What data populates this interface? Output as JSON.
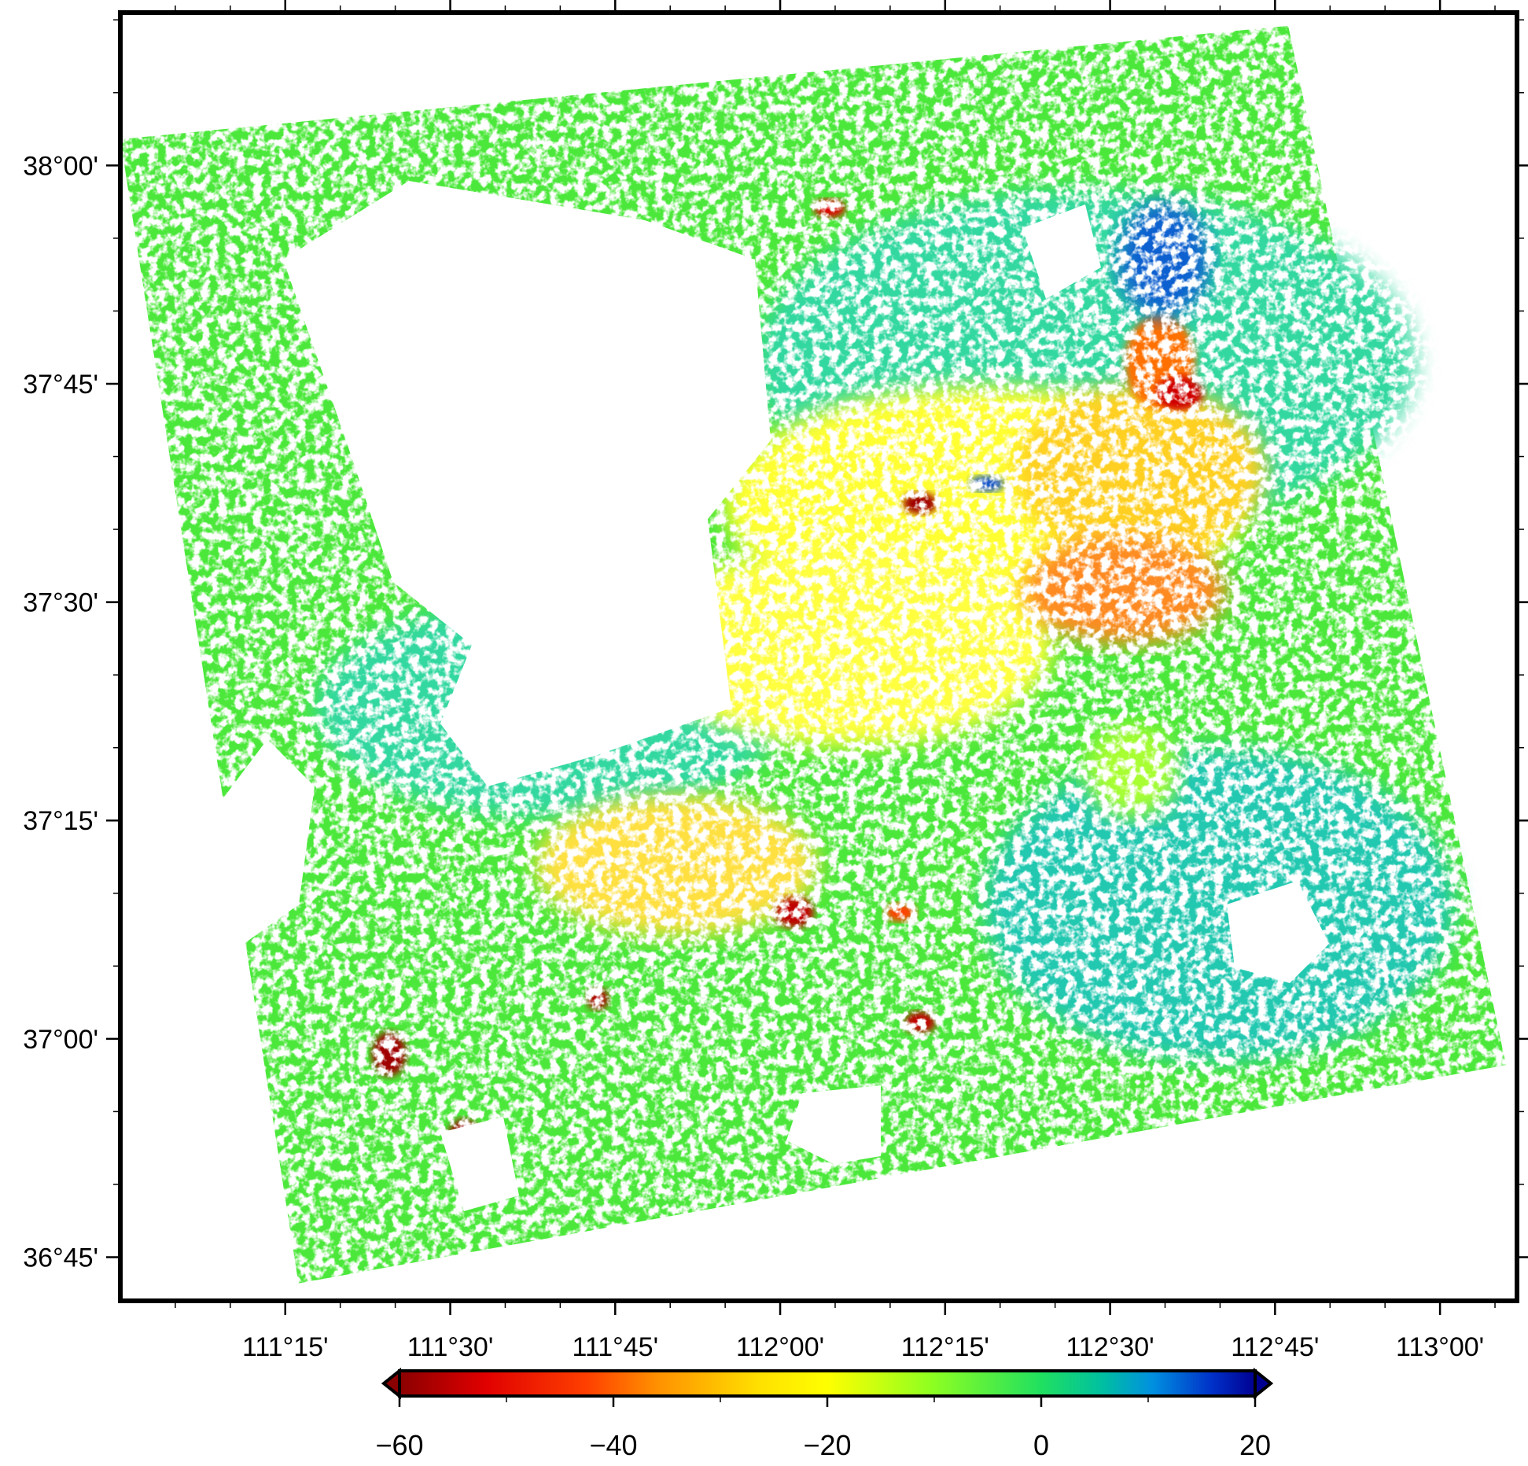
{
  "map": {
    "lon_min": 111.0,
    "lon_max": 113.11667,
    "lat_min": 36.7,
    "lat_max": 38.175,
    "lon_ticks": [
      {
        "value": 111.25,
        "label": "111°15'"
      },
      {
        "value": 111.5,
        "label": "111°30'"
      },
      {
        "value": 111.75,
        "label": "111°45'"
      },
      {
        "value": 112.0,
        "label": "112°00'"
      },
      {
        "value": 112.25,
        "label": "112°15'"
      },
      {
        "value": 112.5,
        "label": "112°30'"
      },
      {
        "value": 112.75,
        "label": "112°45'"
      },
      {
        "value": 113.0,
        "label": "113°00'"
      }
    ],
    "lat_ticks": [
      {
        "value": 36.75,
        "label": "36°45'"
      },
      {
        "value": 37.0,
        "label": "37°00'"
      },
      {
        "value": 37.25,
        "label": "37°15'"
      },
      {
        "value": 37.5,
        "label": "37°30'"
      },
      {
        "value": 37.75,
        "label": "37°45'"
      },
      {
        "value": 38.0,
        "label": "38°00'"
      }
    ],
    "scene_corners": [
      {
        "lon": 111.0,
        "lat": 38.03
      },
      {
        "lon": 112.77,
        "lat": 38.16
      },
      {
        "lon": 113.1,
        "lat": 36.97
      },
      {
        "lon": 111.27,
        "lat": 36.72
      }
    ]
  },
  "colorbar": {
    "min": -60,
    "max": 20,
    "ticks": [
      {
        "value": -60,
        "label": "−60"
      },
      {
        "value": -40,
        "label": "−40"
      },
      {
        "value": -20,
        "label": "−20"
      },
      {
        "value": 0,
        "label": "0"
      },
      {
        "value": 20,
        "label": "20"
      }
    ],
    "colors": [
      "#8b0000",
      "#ff0000",
      "#ff8000",
      "#ffff00",
      "#40ff20",
      "#00e080",
      "#00a0d0",
      "#0040e0",
      "#000080"
    ]
  }
}
